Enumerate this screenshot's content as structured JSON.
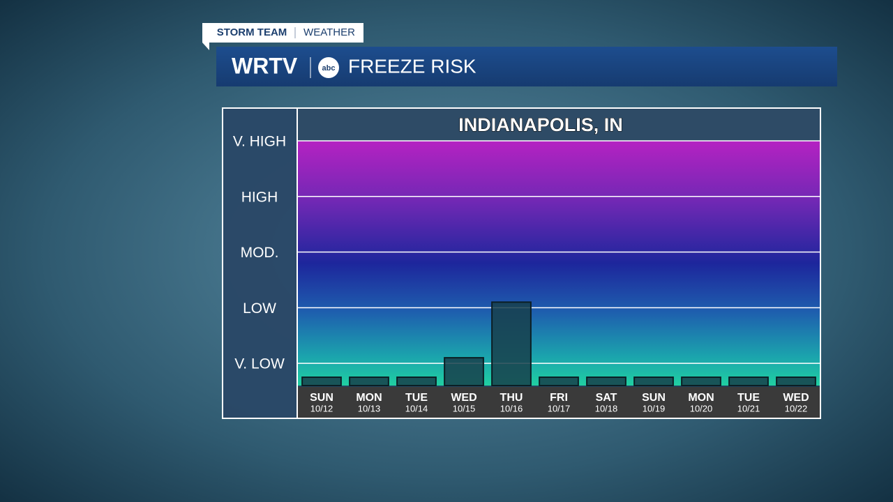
{
  "header": {
    "tag_left": "STORM TEAM",
    "tag_right": "WEATHER",
    "station": "WRTV",
    "network": "abc",
    "headline": "FREEZE RISK"
  },
  "chart_data": {
    "type": "bar",
    "title": "INDIANAPOLIS, IN",
    "categories": [
      "SUN",
      "MON",
      "TUE",
      "WED",
      "THU",
      "FRI",
      "SAT",
      "SUN",
      "MON",
      "TUE",
      "WED"
    ],
    "dates": [
      "10/12",
      "10/13",
      "10/14",
      "10/15",
      "10/16",
      "10/17",
      "10/18",
      "10/19",
      "10/20",
      "10/21",
      "10/22"
    ],
    "values": [
      0.75,
      0.75,
      0.75,
      1.1,
      2.1,
      0.75,
      0.75,
      0.75,
      0.75,
      0.75,
      0.75
    ],
    "color": "#17404b",
    "ylim": [
      0.6,
      5
    ],
    "yticks": [
      {
        "value": 1,
        "label": "V. LOW"
      },
      {
        "value": 2,
        "label": "LOW"
      },
      {
        "value": 3,
        "label": "MOD."
      },
      {
        "value": 4,
        "label": "HIGH"
      },
      {
        "value": 5,
        "label": "V. HIGH"
      }
    ],
    "grid": true
  }
}
